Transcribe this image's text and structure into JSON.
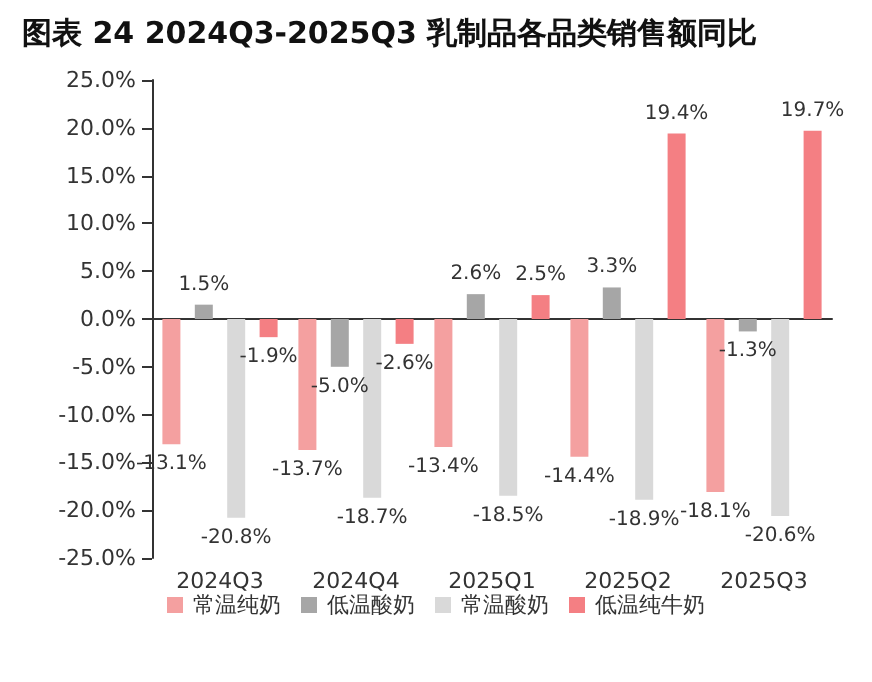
{
  "chart_data": {
    "type": "bar",
    "title": "图表 24 2024Q3-2025Q3 乳制品各品类销售额同比",
    "categories": [
      "2024Q3",
      "2024Q4",
      "2025Q1",
      "2025Q2",
      "2025Q3"
    ],
    "series": [
      {
        "name": "常温纯奶",
        "color": "#f4a0a0",
        "values": [
          -13.1,
          -13.7,
          -13.4,
          -14.4,
          -18.1
        ],
        "value_labels": [
          "-13.1%",
          "-13.7%",
          "-13.4%",
          "-14.4%",
          "-18.1%"
        ]
      },
      {
        "name": "低温酸奶",
        "color": "#a6a6a6",
        "values": [
          1.5,
          -5.0,
          2.6,
          3.3,
          -1.3
        ],
        "value_labels": [
          "1.5%",
          "-5.0%",
          "2.6%",
          "3.3%",
          "-1.3%"
        ]
      },
      {
        "name": "常温酸奶",
        "color": "#d9d9d9",
        "values": [
          -20.8,
          -18.7,
          -18.5,
          -18.9,
          -20.6
        ],
        "value_labels": [
          "-20.8%",
          "-18.7%",
          "-18.5%",
          "-18.9%",
          "-20.6%"
        ]
      },
      {
        "name": "低温纯牛奶",
        "color": "#f47f83",
        "values": [
          -1.9,
          -2.6,
          2.5,
          19.4,
          19.7
        ],
        "value_labels": [
          "-1.9%",
          "-2.6%",
          "2.5%",
          "19.4%",
          "19.7%"
        ]
      }
    ],
    "ylim": [
      -25,
      25
    ],
    "yticks": [
      {
        "value": -25,
        "label": "-25.0%"
      },
      {
        "value": -20,
        "label": "-20.0%"
      },
      {
        "value": -15,
        "label": "-15.0%"
      },
      {
        "value": -10,
        "label": "-10.0%"
      },
      {
        "value": -5,
        "label": "-5.0%"
      },
      {
        "value": 0,
        "label": "0.0%"
      },
      {
        "value": 5,
        "label": "5.0%"
      },
      {
        "value": 10,
        "label": "10.0%"
      },
      {
        "value": 15,
        "label": "15.0%"
      },
      {
        "value": 20,
        "label": "20.0%"
      },
      {
        "value": 25,
        "label": "25.0%"
      }
    ],
    "legend": "bottom"
  }
}
